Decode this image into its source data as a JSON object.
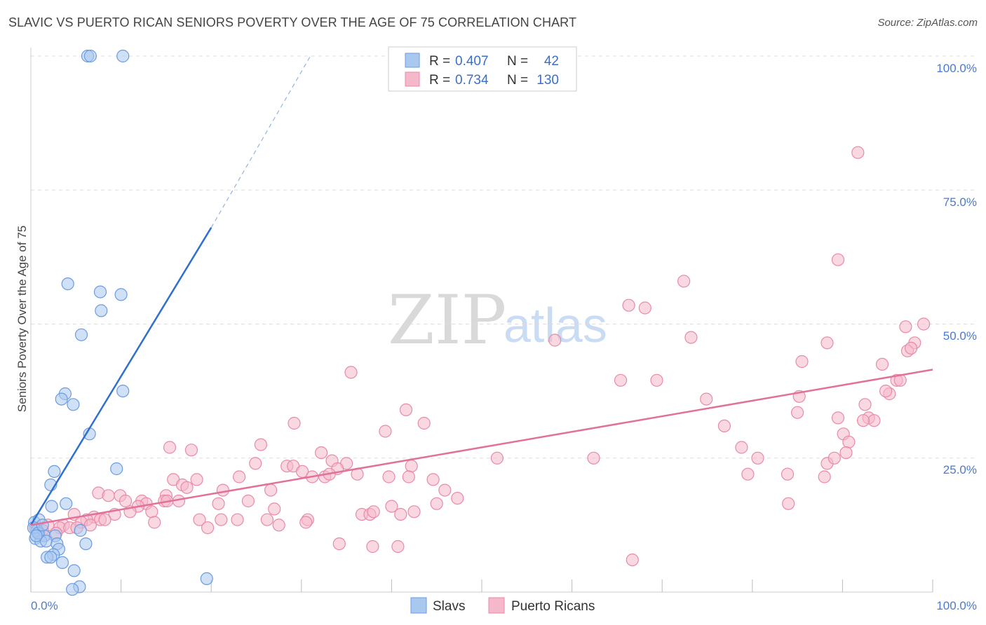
{
  "header": {
    "title": "SLAVIC VS PUERTO RICAN SENIORS POVERTY OVER THE AGE OF 75 CORRELATION CHART",
    "source": "Source: ZipAtlas.com"
  },
  "watermark": {
    "zip": "ZIP",
    "atlas": "atlas"
  },
  "colors": {
    "slavs_fill": "#a9c8f0",
    "slavs_stroke": "#6b9be0",
    "slavs_line": "#2e6fd0",
    "pr_fill": "#f5b8cb",
    "pr_stroke": "#e88aa7",
    "pr_line": "#e2719a",
    "grid": "#dddddd",
    "tick_label": "#4a7bd0"
  },
  "legend": {
    "rows": [
      {
        "r_label": "R =",
        "r_value": "0.407",
        "n_label": "N =",
        "n_value": "42"
      },
      {
        "r_label": "R =",
        "r_value": "0.734",
        "n_label": "N =",
        "n_value": "130"
      }
    ]
  },
  "chart_data": {
    "type": "scatter",
    "title": "SLAVIC VS PUERTO RICAN SENIORS POVERTY OVER THE AGE OF 75 CORRELATION CHART",
    "xlabel": "",
    "ylabel": "Seniors Poverty Over the Age of 75",
    "xlim": [
      0,
      100
    ],
    "ylim": [
      0,
      100
    ],
    "x_tick_labels": [
      "0.0%",
      "100.0%"
    ],
    "y_ticks": [
      25,
      50,
      75,
      100
    ],
    "y_tick_labels": [
      "25.0%",
      "50.0%",
      "75.0%",
      "100.0%"
    ],
    "grid": true,
    "legend_position": "top-center",
    "series": [
      {
        "name": "Slavs",
        "r": 0.407,
        "n": 42,
        "trend": {
          "x0": 0,
          "y0": 12.5,
          "x1": 20,
          "y1": 68,
          "dash_to_x": 31,
          "dash_to_y": 100
        },
        "points": [
          [
            6.3,
            100
          ],
          [
            6.6,
            100
          ],
          [
            10.2,
            100
          ],
          [
            4.1,
            57.5
          ],
          [
            7.7,
            56
          ],
          [
            10,
            55.5
          ],
          [
            7.8,
            52.5
          ],
          [
            5.6,
            48
          ],
          [
            10.2,
            37.5
          ],
          [
            3.8,
            37
          ],
          [
            3.4,
            36
          ],
          [
            4.7,
            35
          ],
          [
            6.5,
            29.5
          ],
          [
            2.6,
            22.5
          ],
          [
            9.5,
            23
          ],
          [
            2.2,
            20
          ],
          [
            3.9,
            16.5
          ],
          [
            2.3,
            16
          ],
          [
            0.4,
            13
          ],
          [
            0.9,
            13.5
          ],
          [
            0.7,
            11.5
          ],
          [
            1.5,
            10.5
          ],
          [
            2.7,
            10.5
          ],
          [
            0.5,
            10
          ],
          [
            1.1,
            9.5
          ],
          [
            1.7,
            9.5
          ],
          [
            2.9,
            9
          ],
          [
            3.1,
            8
          ],
          [
            2.5,
            7
          ],
          [
            1.8,
            6.5
          ],
          [
            2.2,
            6.5
          ],
          [
            3.5,
            5.5
          ],
          [
            4.8,
            4
          ],
          [
            5.4,
            1
          ],
          [
            4.6,
            0.5
          ],
          [
            19.5,
            2.5
          ],
          [
            6.1,
            9
          ],
          [
            0.3,
            12
          ],
          [
            0.8,
            11
          ],
          [
            1.3,
            12.5
          ],
          [
            5.5,
            11.5
          ],
          [
            0.6,
            10.5
          ]
        ]
      },
      {
        "name": "Puerto Ricans",
        "r": 0.734,
        "n": 130,
        "trend": {
          "x0": 0,
          "y0": 12.5,
          "x1": 100,
          "y1": 41.5
        },
        "points": [
          [
            91.7,
            82
          ],
          [
            89.5,
            62
          ],
          [
            72.4,
            58
          ],
          [
            66.3,
            53.5
          ],
          [
            68.1,
            53
          ],
          [
            97,
            49.5
          ],
          [
            99,
            50
          ],
          [
            58.1,
            47
          ],
          [
            73.2,
            47.5
          ],
          [
            88.3,
            46.5
          ],
          [
            98,
            46.5
          ],
          [
            97.2,
            45
          ],
          [
            97.6,
            45.5
          ],
          [
            85.5,
            43
          ],
          [
            94.4,
            42.5
          ],
          [
            35.5,
            41
          ],
          [
            65.4,
            39.5
          ],
          [
            69.4,
            39.5
          ],
          [
            96,
            39.5
          ],
          [
            96.4,
            39.5
          ],
          [
            95.2,
            37
          ],
          [
            94.8,
            37.5
          ],
          [
            85.2,
            36.5
          ],
          [
            74.9,
            36
          ],
          [
            92.5,
            35
          ],
          [
            41.6,
            34
          ],
          [
            85,
            33.5
          ],
          [
            92.9,
            32.5
          ],
          [
            93.5,
            32
          ],
          [
            92.3,
            32
          ],
          [
            89.5,
            32.5
          ],
          [
            43.6,
            31.5
          ],
          [
            29.2,
            31.5
          ],
          [
            39.3,
            30
          ],
          [
            76.9,
            31
          ],
          [
            90.1,
            29.5
          ],
          [
            90.7,
            28
          ],
          [
            15.4,
            27
          ],
          [
            17.8,
            26.5
          ],
          [
            25.5,
            27.5
          ],
          [
            78.8,
            27
          ],
          [
            32.2,
            26
          ],
          [
            90.4,
            26
          ],
          [
            51.7,
            25
          ],
          [
            33.4,
            24.5
          ],
          [
            35,
            24
          ],
          [
            42.2,
            23.5
          ],
          [
            24.9,
            24
          ],
          [
            28.4,
            23.5
          ],
          [
            29.1,
            23.5
          ],
          [
            30.1,
            22.5
          ],
          [
            34,
            23
          ],
          [
            80.6,
            25
          ],
          [
            88.3,
            24
          ],
          [
            83.9,
            22
          ],
          [
            88,
            21.5
          ],
          [
            31.2,
            21.5
          ],
          [
            32.6,
            21.5
          ],
          [
            39.7,
            21.5
          ],
          [
            41.9,
            21.5
          ],
          [
            23.1,
            21.5
          ],
          [
            15.8,
            21
          ],
          [
            18.4,
            21
          ],
          [
            16.8,
            20
          ],
          [
            17.3,
            19.5
          ],
          [
            21.3,
            19
          ],
          [
            26.6,
            19
          ],
          [
            45.9,
            19
          ],
          [
            7.5,
            18.5
          ],
          [
            9.9,
            18
          ],
          [
            8.6,
            18
          ],
          [
            15,
            18
          ],
          [
            12.3,
            17
          ],
          [
            14.8,
            17
          ],
          [
            24.1,
            17
          ],
          [
            16.4,
            17
          ],
          [
            12.8,
            16.5
          ],
          [
            10.5,
            17
          ],
          [
            20.8,
            16.5
          ],
          [
            40,
            16
          ],
          [
            45,
            16.5
          ],
          [
            47.3,
            17.5
          ],
          [
            15.1,
            17
          ],
          [
            11.9,
            16
          ],
          [
            11,
            15
          ],
          [
            13.4,
            15
          ],
          [
            36.7,
            14.5
          ],
          [
            37.6,
            14.5
          ],
          [
            38,
            15
          ],
          [
            41,
            14.5
          ],
          [
            9.3,
            14.5
          ],
          [
            27,
            15.5
          ],
          [
            84,
            16.5
          ],
          [
            4.8,
            14.5
          ],
          [
            7,
            14
          ],
          [
            6.2,
            13.5
          ],
          [
            7.7,
            13.5
          ],
          [
            8.2,
            13.5
          ],
          [
            5.6,
            13
          ],
          [
            18.7,
            13.5
          ],
          [
            21.1,
            13.5
          ],
          [
            22.9,
            13.5
          ],
          [
            26.2,
            13.5
          ],
          [
            30.7,
            13.5
          ],
          [
            13.7,
            13
          ],
          [
            1.9,
            12.5
          ],
          [
            3.6,
            12.5
          ],
          [
            3.2,
            12
          ],
          [
            4.3,
            12
          ],
          [
            1.3,
            11.5
          ],
          [
            0.5,
            12
          ],
          [
            0.9,
            11
          ],
          [
            2.8,
            11
          ],
          [
            19.6,
            12
          ],
          [
            27.5,
            12.5
          ],
          [
            30.5,
            13
          ],
          [
            1.5,
            10.5
          ],
          [
            5.1,
            12
          ],
          [
            6.6,
            12.5
          ],
          [
            34.2,
            9
          ],
          [
            37.9,
            8.5
          ],
          [
            40.7,
            8.5
          ],
          [
            66.7,
            6
          ],
          [
            62.4,
            25
          ],
          [
            89.1,
            25
          ],
          [
            79.5,
            22
          ],
          [
            33.1,
            22
          ],
          [
            36.2,
            22
          ],
          [
            42.5,
            15
          ],
          [
            44.6,
            21
          ]
        ]
      }
    ]
  }
}
